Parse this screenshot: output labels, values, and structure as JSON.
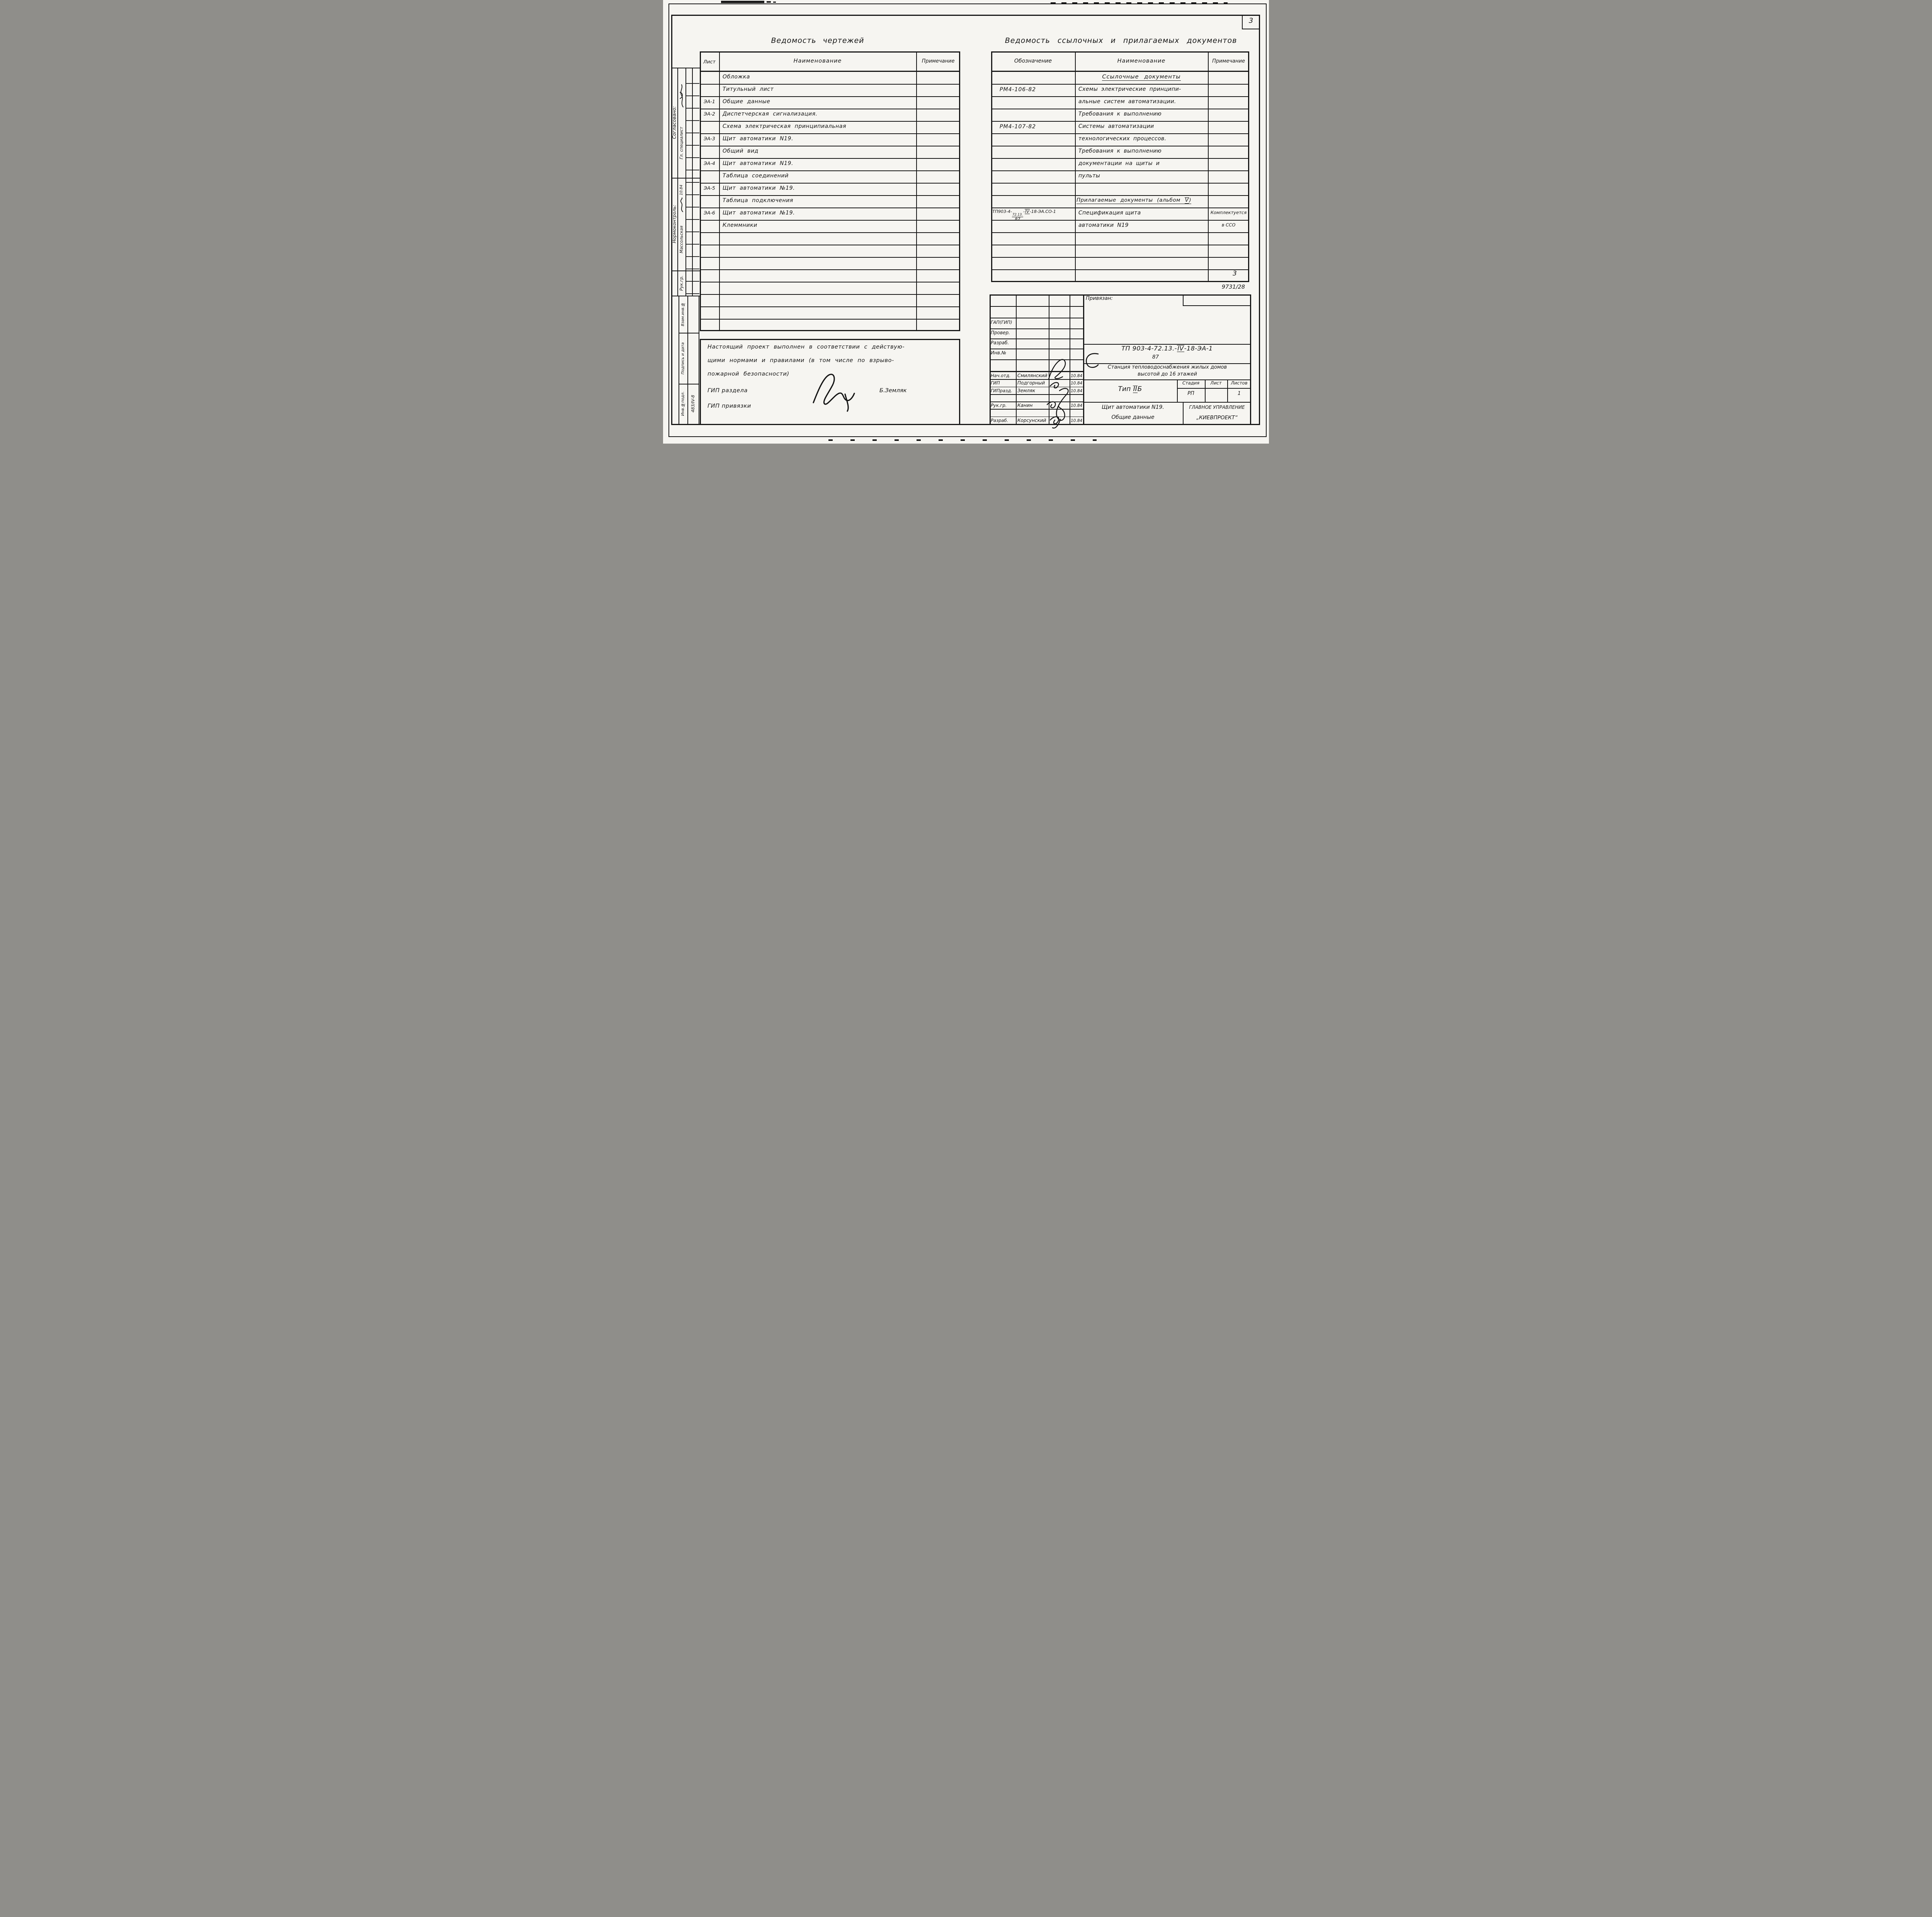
{
  "sheet": {
    "page_number_top_right": "3",
    "page_number_table": "3",
    "doc_code": "9731/28"
  },
  "drawings_list": {
    "title": "Ведомость чертежей",
    "columns": {
      "sheet": "Лист",
      "name": "Наименование",
      "note": "Примечание"
    },
    "rows": [
      {
        "s": "",
        "n": "Обложка"
      },
      {
        "s": "",
        "n": "Титульный лист"
      },
      {
        "s": "ЭА-1",
        "n": "Общие данные"
      },
      {
        "s": "ЭА-2",
        "n": "Диспетчерская сигнализация."
      },
      {
        "s": "",
        "n": "Схема электрическая принципиальная"
      },
      {
        "s": "ЭА-3",
        "n": "Щит автоматики N19."
      },
      {
        "s": "",
        "n": "Общий вид"
      },
      {
        "s": "ЭА-4",
        "n": "Щит автоматики N19."
      },
      {
        "s": "",
        "n": "Таблица соединений"
      },
      {
        "s": "ЭА-5",
        "n": "Щит автоматики №19."
      },
      {
        "s": "",
        "n": "Таблица подключения"
      },
      {
        "s": "ЭА-6",
        "n": "Щит автоматики №19."
      },
      {
        "s": "",
        "n": "Клеммники"
      },
      {
        "s": "",
        "n": ""
      },
      {
        "s": "",
        "n": ""
      },
      {
        "s": "",
        "n": ""
      },
      {
        "s": "",
        "n": ""
      },
      {
        "s": "",
        "n": ""
      },
      {
        "s": "",
        "n": ""
      },
      {
        "s": "",
        "n": ""
      },
      {
        "s": "",
        "n": ""
      }
    ]
  },
  "note_box": {
    "line1": "Настоящий проект выполнен в соответствии с действую-",
    "line2": "щими нормами и правилами (в том числе по взрыво-",
    "line3": "пожарной безопасности)",
    "gip_section_label": "ГИП раздела",
    "gip_binding_label": "ГИП привязки",
    "gip_name": "Б.Земляк"
  },
  "ref_docs_list": {
    "title": "Ведомость ссылочных и прилагаемых документов",
    "columns": {
      "designation": "Обозначение",
      "name": "Наименование",
      "note": "Примечание"
    },
    "section_ref_header": "Ссылочные документы",
    "section_app_header": "Прилагаемые документы",
    "section_app_suffix": "(альбом ",
    "section_app_roman": "V",
    "section_app_close": ")",
    "special_designation": {
      "pre": "ТП903-4-",
      "sup": "72.13.",
      "base": "87",
      "dash": "-",
      "roman": "IV",
      "post": "-18-ЭА.СО-1"
    },
    "rows": [
      {
        "d": "",
        "n": "",
        "p": "",
        "style": "section"
      },
      {
        "d": "РМ4-106-82",
        "n": "Схемы электрические принципи-",
        "p": ""
      },
      {
        "d": "",
        "n": "альные систем автоматизации.",
        "p": ""
      },
      {
        "d": "",
        "n": "Требования к выполнению",
        "p": ""
      },
      {
        "d": "РМ4-107-82",
        "n": "Системы автоматизации",
        "p": ""
      },
      {
        "d": "",
        "n": "технологических процессов.",
        "p": ""
      },
      {
        "d": "",
        "n": "Требования к выполнению",
        "p": ""
      },
      {
        "d": "",
        "n": "документации на щиты и",
        "p": ""
      },
      {
        "d": "",
        "n": "пульты",
        "p": ""
      },
      {
        "d": "",
        "n": "",
        "p": ""
      },
      {
        "d": "",
        "n": "",
        "p": "",
        "style": "section2"
      },
      {
        "d": "",
        "n": "Спецификация щита",
        "p": "Комплектуется",
        "style": "special"
      },
      {
        "d": "",
        "n": "автоматики N19",
        "p": "в ССО"
      },
      {
        "d": "",
        "n": "",
        "p": ""
      },
      {
        "d": "",
        "n": "",
        "p": ""
      },
      {
        "d": "",
        "n": "",
        "p": ""
      },
      {
        "d": "",
        "n": "",
        "p": ""
      }
    ]
  },
  "title_block": {
    "attached_label": "Привязан:",
    "designation": {
      "pre": "ТП 903-4-72.13.-",
      "roman": "IV",
      "post": "-18-ЭА-1",
      "below": "87"
    },
    "object_line1": "Станция тепловодоснабжения жилых домов",
    "object_line2": "высотой до 16 этажей",
    "type_pre": "Тип ",
    "type_roman": "II",
    "type_post": "Б",
    "stage_label": "Стадия",
    "sheet_label": "Лист",
    "sheets_label": "Листов",
    "stage_value": "РП",
    "sheet_value": "",
    "sheets_value": "1",
    "drawing_title_line1": "Щит автоматики N19.",
    "drawing_title_line2": "Общие данные",
    "org_line1": "ГЛАВНОЕ УПРАВЛЕНИЕ",
    "org_line2": "„КИЕВПРОЕКТ“",
    "upper_rows": [
      "ГАП(ГИП)",
      "Провер.",
      "Разраб.",
      "Инв.№"
    ],
    "people": [
      {
        "role": "Нач.отд.",
        "name": "Смилянский",
        "date": "10.84"
      },
      {
        "role": "ГИП",
        "name": "Подгорный",
        "date": "10.84"
      },
      {
        "role": "ГИПразд.",
        "name": "Земляк",
        "date": "10.84"
      },
      {
        "role": "",
        "name": "",
        "date": ""
      },
      {
        "role": "Рук.гр.",
        "name": "Канин",
        "date": "10.84"
      },
      {
        "role": "",
        "name": "",
        "date": ""
      },
      {
        "role": "Разраб.",
        "name": "Корсунский",
        "date": "10.84"
      }
    ]
  },
  "sidebar": {
    "agreed_label": "Согласовано:",
    "agreed_name": "Гл. специалист",
    "normo_label": "Нормоконтроль:",
    "normo_name": "Массольская",
    "normo_date": "10.84",
    "group_label": "Рук.гр.",
    "cell_replace_label": "Взам.инв.№",
    "cell_sign_label": "Подпись и дата",
    "cell_inv_label": "Инв.№подл.",
    "inventory_value": "483/IV-8"
  }
}
